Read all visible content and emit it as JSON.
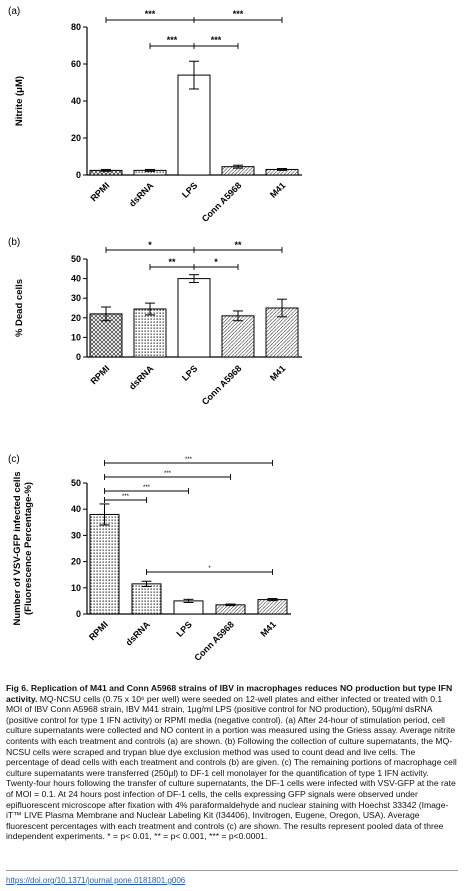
{
  "chart_data": [
    {
      "type": "bar",
      "panel": "(a)",
      "categories": [
        "RPMI",
        "dsRNA",
        "LPS",
        "Conn A5968",
        "M41"
      ],
      "values": [
        2.5,
        2.5,
        54,
        4.5,
        3
      ],
      "errors": [
        0.5,
        0.5,
        7.5,
        0.8,
        0.5
      ],
      "ylabel": "Nitrite (μM)",
      "ylim": [
        0,
        80
      ],
      "yticks": [
        0,
        20,
        40,
        60,
        80
      ],
      "patterns": [
        "cross",
        "dots",
        "empty",
        "hatch",
        "hatch"
      ],
      "significance": [
        {
          "from": 0,
          "to": 4,
          "label": "***"
        },
        {
          "from": 1,
          "to": 3,
          "label": "***"
        }
      ]
    },
    {
      "type": "bar",
      "panel": "(b)",
      "categories": [
        "RPMI",
        "dsRNA",
        "LPS",
        "Conn A5968",
        "M41"
      ],
      "values": [
        22,
        24.5,
        40,
        21,
        25
      ],
      "errors": [
        3.5,
        3,
        2,
        2.5,
        4.5
      ],
      "ylabel": "% Dead cells",
      "ylim": [
        0,
        50
      ],
      "yticks": [
        0,
        10,
        20,
        30,
        40,
        50
      ],
      "patterns": [
        "cross",
        "dots",
        "empty",
        "hatch",
        "hatch"
      ],
      "significance": [
        {
          "from": 0,
          "to": 4,
          "label_left": "*",
          "label_right": "**"
        },
        {
          "from": 1,
          "to": 3,
          "label_left": "**",
          "label_right": "*"
        }
      ]
    },
    {
      "type": "bar",
      "panel": "(c)",
      "categories": [
        "RPMI",
        "dsRNA",
        "LPS",
        "Conn A5968",
        "M41"
      ],
      "values": [
        38,
        11.5,
        5,
        3.5,
        5.5
      ],
      "errors": [
        4,
        1,
        0.6,
        0.3,
        0.4
      ],
      "ylabel_line1": "Number of VSV-GFP infected cells",
      "ylabel_line2": "(Fluorescence Percentage-%)",
      "ylim": [
        0,
        50
      ],
      "yticks": [
        0,
        10,
        20,
        30,
        40,
        50
      ],
      "patterns": [
        "dots",
        "dots",
        "empty",
        "hatch",
        "hatch"
      ],
      "significance": [
        {
          "from": 0,
          "to": 4,
          "label": "***"
        },
        {
          "from": 0,
          "to": 3,
          "label": "***"
        },
        {
          "from": 0,
          "to": 2,
          "label": "***"
        },
        {
          "from": 0,
          "to": 1,
          "label": "***"
        },
        {
          "from": 1,
          "to": 4,
          "label": "*"
        }
      ]
    }
  ],
  "caption": {
    "title": "Fig 6. Replication of M41 and Conn A5968 strains of IBV in macrophages reduces NO production but type IFN activity.",
    "text": "MQ-NCSU cells (0.75 x 10⁶ per well) were seeded on 12-well plates and either infected or treated with 0.1 MOI of IBV Conn A5968 strain, IBV M41 strain, 1μg/ml LPS (positive control for NO production), 50μg/ml dsRNA (positive control for type 1 IFN activity) or RPMI media (negative control). (a) After 24-hour of stimulation period, cell culture supernatants were collected and NO content in a portion was measured using the Griess assay. Average nitrite contents with each treatment and controls (a) are shown. (b) Following the collection of culture supernatants, the MQ-NCSU cells were scraped and trypan blue dye exclusion method was used to count dead and live cells. The percentage of dead cells with each treatment and controls (b) are given. (c) The remaining portions of macrophage cell culture supernatants were transferred (250μl) to DF-1 cell monolayer for the quantification of type 1 IFN activity. Twenty-four hours following the transfer of culture supernatants, the DF-1 cells were infected with VSV-GFP at the rate of MOI = 0.1. At 24 hours post infection of DF-1 cells, the cells expressing GFP signals were observed under epifluorescent microscope after fixation with 4% paraformaldehyde and nuclear staining with Hoechst 33342 (Image-iT™ LIVE Plasma Membrane and Nuclear Labeling Kit (I34406), Invitrogen, Eugene, Oregon, USA). Average fluorescent percentages with each treatment and controls (c) are shown. The results represent pooled data of three independent experiments. * = p< 0.01, ** = p< 0.001, *** = p<0.0001."
  },
  "doi": "https://doi.org/10.1371/journal.pone.0181801.g006"
}
